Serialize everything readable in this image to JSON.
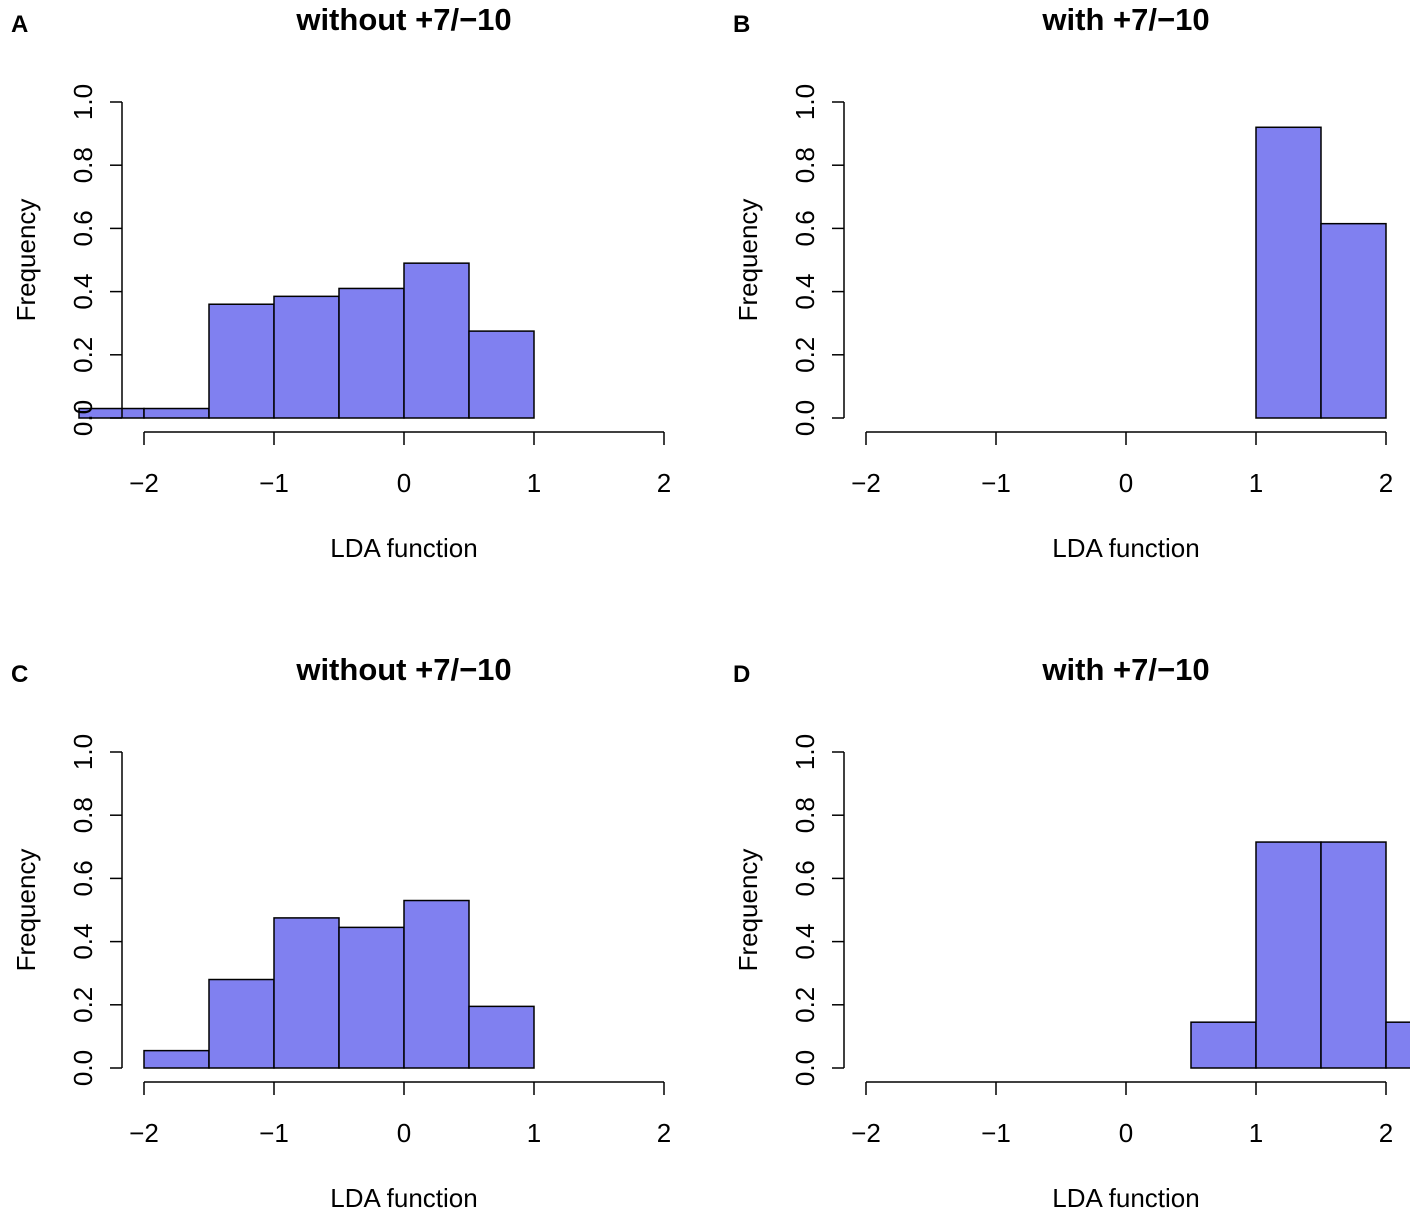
{
  "figure": {
    "panels": [
      "A",
      "B",
      "C",
      "D"
    ]
  },
  "chart_data": [
    {
      "panel": "A",
      "type": "bar",
      "title": "without +7/−10",
      "xlabel": "LDA function",
      "ylabel": "Frequency",
      "xlim": [
        -2,
        2
      ],
      "ylim": [
        0,
        1
      ],
      "xticks": [
        -2,
        -1,
        0,
        1,
        2
      ],
      "xtick_labels": [
        "−2",
        "−1",
        "0",
        "1",
        "2"
      ],
      "yticks": [
        0,
        0.2,
        0.4,
        0.6,
        0.8,
        1.0
      ],
      "ytick_labels": [
        "0.0",
        "0.2",
        "0.4",
        "0.6",
        "0.8",
        "1.0"
      ],
      "bins": [
        {
          "x0": -2.5,
          "x1": -2.0,
          "value": 0.03
        },
        {
          "x0": -2.0,
          "x1": -1.5,
          "value": 0.03
        },
        {
          "x0": -1.5,
          "x1": -1.0,
          "value": 0.36
        },
        {
          "x0": -1.0,
          "x1": -0.5,
          "value": 0.385
        },
        {
          "x0": -0.5,
          "x1": 0.0,
          "value": 0.41
        },
        {
          "x0": 0.0,
          "x1": 0.5,
          "value": 0.49
        },
        {
          "x0": 0.5,
          "x1": 1.0,
          "value": 0.275
        }
      ],
      "color": "#8080f0"
    },
    {
      "panel": "B",
      "type": "bar",
      "title": "with +7/−10",
      "xlabel": "LDA function",
      "ylabel": "Frequency",
      "xlim": [
        -2,
        2
      ],
      "ylim": [
        0,
        1
      ],
      "xticks": [
        -2,
        -1,
        0,
        1,
        2
      ],
      "xtick_labels": [
        "−2",
        "−1",
        "0",
        "1",
        "2"
      ],
      "yticks": [
        0,
        0.2,
        0.4,
        0.6,
        0.8,
        1.0
      ],
      "ytick_labels": [
        "0.0",
        "0.2",
        "0.4",
        "0.6",
        "0.8",
        "1.0"
      ],
      "bins": [
        {
          "x0": 1.0,
          "x1": 1.5,
          "value": 0.92
        },
        {
          "x0": 1.5,
          "x1": 2.0,
          "value": 0.615
        }
      ],
      "color": "#8080f0"
    },
    {
      "panel": "C",
      "type": "bar",
      "title": "without +7/−10",
      "xlabel": "LDA function",
      "ylabel": "Frequency",
      "xlim": [
        -2,
        2
      ],
      "ylim": [
        0,
        1
      ],
      "xticks": [
        -2,
        -1,
        0,
        1,
        2
      ],
      "xtick_labels": [
        "−2",
        "−1",
        "0",
        "1",
        "2"
      ],
      "yticks": [
        0,
        0.2,
        0.4,
        0.6,
        0.8,
        1.0
      ],
      "ytick_labels": [
        "0.0",
        "0.2",
        "0.4",
        "0.6",
        "0.8",
        "1.0"
      ],
      "bins": [
        {
          "x0": -2.0,
          "x1": -1.5,
          "value": 0.055
        },
        {
          "x0": -1.5,
          "x1": -1.0,
          "value": 0.28
        },
        {
          "x0": -1.0,
          "x1": -0.5,
          "value": 0.475
        },
        {
          "x0": -0.5,
          "x1": 0.0,
          "value": 0.445
        },
        {
          "x0": 0.0,
          "x1": 0.5,
          "value": 0.53
        },
        {
          "x0": 0.5,
          "x1": 1.0,
          "value": 0.195
        }
      ],
      "color": "#8080f0"
    },
    {
      "panel": "D",
      "type": "bar",
      "title": "with +7/−10",
      "xlabel": "LDA function",
      "ylabel": "Frequency",
      "xlim": [
        -2,
        2
      ],
      "ylim": [
        0,
        1
      ],
      "xticks": [
        -2,
        -1,
        0,
        1,
        2
      ],
      "xtick_labels": [
        "−2",
        "−1",
        "0",
        "1",
        "2"
      ],
      "yticks": [
        0,
        0.2,
        0.4,
        0.6,
        0.8,
        1.0
      ],
      "ytick_labels": [
        "0.0",
        "0.2",
        "0.4",
        "0.6",
        "0.8",
        "1.0"
      ],
      "bins": [
        {
          "x0": 0.5,
          "x1": 1.0,
          "value": 0.145
        },
        {
          "x0": 1.0,
          "x1": 1.5,
          "value": 0.715
        },
        {
          "x0": 1.5,
          "x1": 2.0,
          "value": 0.715
        },
        {
          "x0": 2.0,
          "x1": 2.5,
          "value": 0.145
        }
      ],
      "color": "#8080f0"
    }
  ]
}
